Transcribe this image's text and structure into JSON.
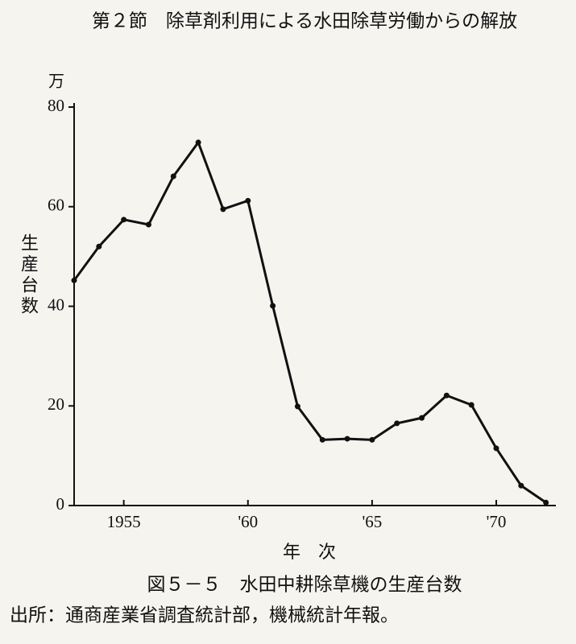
{
  "header": "第２節　除草剤利用による水田除草労働からの解放",
  "chart_data": {
    "type": "line",
    "y_unit": "万",
    "y_label": "生産台数",
    "x_label": "年　次",
    "caption": "図５－５　水田中耕除草機の生産台数",
    "source": "出所：通商産業省調査統計部，機械統計年報。",
    "x": [
      1953,
      1954,
      1955,
      1956,
      1957,
      1958,
      1959,
      1960,
      1961,
      1962,
      1963,
      1964,
      1965,
      1966,
      1967,
      1968,
      1969,
      1970,
      1971,
      1972
    ],
    "series": [
      {
        "color": "#111111",
        "values": [
          45.2,
          52,
          57.4,
          56.4,
          66.1,
          72.9,
          59.5,
          61.2,
          40.1,
          19.9,
          13.2,
          13.4,
          13.2,
          16.5,
          17.6,
          22.1,
          20.2,
          11.5,
          4,
          0.6
        ]
      }
    ],
    "xlim": [
      1953,
      1972.4
    ],
    "xticks": [
      1955,
      {
        "value": 1960,
        "label": "'60"
      },
      {
        "value": 1965,
        "label": "'65"
      },
      {
        "value": 1970,
        "label": "'70"
      }
    ],
    "ylim": [
      0,
      80
    ],
    "yticks": [
      0,
      20,
      40,
      60,
      80
    ]
  }
}
